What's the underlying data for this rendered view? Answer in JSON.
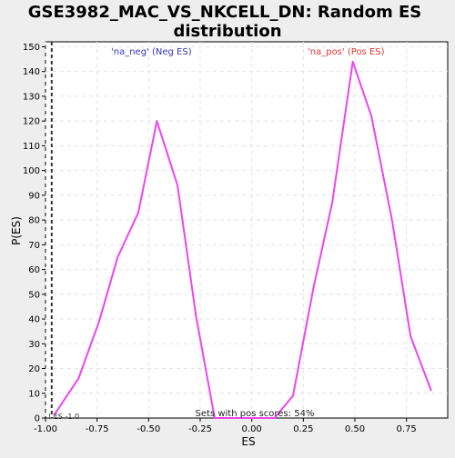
{
  "chart_data": {
    "type": "line",
    "title_lines": [
      "GSE3982_MAC_VS_NKCELL_DN: Random ES",
      "distribution"
    ],
    "xlabel": "ES",
    "ylabel": "P(ES)",
    "xlim": [
      -1.0,
      0.95
    ],
    "ylim": [
      0,
      152
    ],
    "x_ticks": [
      -1.0,
      -0.75,
      -0.5,
      -0.25,
      0.0,
      0.25,
      0.5,
      0.75
    ],
    "x_tick_labels": [
      "-1.00",
      "-0.75",
      "-0.50",
      "-0.25",
      "0.00",
      "0.25",
      "0.50",
      "0.75"
    ],
    "y_ticks": [
      0,
      10,
      20,
      30,
      40,
      50,
      60,
      70,
      80,
      90,
      100,
      110,
      120,
      130,
      140,
      150
    ],
    "y_tick_labels": [
      "0",
      "10",
      "20",
      "30",
      "40",
      "50",
      "60",
      "70",
      "80",
      "90",
      "100",
      "110",
      "120",
      "130",
      "140",
      "150"
    ],
    "grid": true,
    "series": [
      {
        "color": "#ee44ee",
        "x": [
          -0.96,
          -0.84,
          -0.74,
          -0.65,
          -0.55,
          -0.46,
          -0.36,
          -0.27,
          -0.18,
          -0.08,
          0.01,
          0.11,
          0.2,
          0.3,
          0.39,
          0.49,
          0.58,
          0.68,
          0.77,
          0.87
        ],
        "y": [
          1,
          16,
          39,
          65,
          83,
          120,
          94,
          41,
          0,
          0,
          0,
          0,
          9,
          53,
          87,
          144,
          122,
          80,
          33,
          11
        ]
      }
    ],
    "reference_line": {
      "x": -0.97,
      "label": "! ES -1.0"
    },
    "annotations": {
      "neg_label": "'na_neg' (Neg ES)",
      "pos_label": "'na_pos' (Pos ES)",
      "footer": "Sets with pos scores: 54%"
    },
    "colors": {
      "neg": "#3333bb",
      "pos": "#dd3333",
      "line": "#ee44ee",
      "reference": "#333333"
    }
  }
}
